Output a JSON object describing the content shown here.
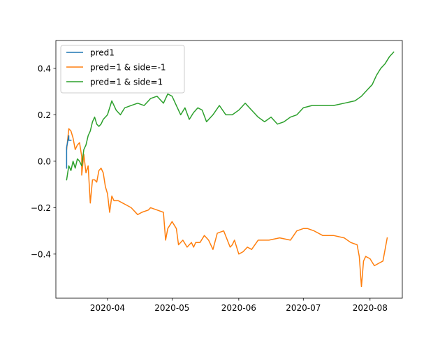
{
  "chart_data": {
    "type": "line",
    "title": "",
    "xlabel": "",
    "ylabel": "",
    "xlim": [
      "2020-03-08",
      "2020-08-16"
    ],
    "ylim": [
      -0.59,
      0.52
    ],
    "x_ticks": [
      "2020-04-01",
      "2020-05-01",
      "2020-06-01",
      "2020-07-01",
      "2020-08-01"
    ],
    "x_tick_labels": [
      "2020-04",
      "2020-05",
      "2020-06",
      "2020-07",
      "2020-08"
    ],
    "y_ticks": [
      -0.4,
      -0.2,
      0.0,
      0.2,
      0.4
    ],
    "y_tick_labels": [
      "−0.4",
      "−0.2",
      "0.0",
      "0.2",
      "0.4"
    ],
    "grid": false,
    "legend_position": "upper left",
    "series": [
      {
        "name": "pred1",
        "color": "#1f77b4",
        "x": [
          "2020-03-13",
          "2020-03-13",
          "2020-03-14",
          "2020-03-14",
          "2020-03-15"
        ],
        "y": [
          -0.03,
          0.06,
          0.11,
          0.09,
          0.09
        ]
      },
      {
        "name": "pred=1 & side=-1",
        "color": "#ff7f0e",
        "x": [
          "2020-03-13",
          "2020-03-14",
          "2020-03-15",
          "2020-03-16",
          "2020-03-17",
          "2020-03-18",
          "2020-03-19",
          "2020-03-20",
          "2020-03-20",
          "2020-03-21",
          "2020-03-22",
          "2020-03-23",
          "2020-03-24",
          "2020-03-25",
          "2020-03-26",
          "2020-03-27",
          "2020-03-28",
          "2020-03-29",
          "2020-03-30",
          "2020-03-31",
          "2020-04-01",
          "2020-04-02",
          "2020-04-03",
          "2020-04-04",
          "2020-04-06",
          "2020-04-08",
          "2020-04-10",
          "2020-04-12",
          "2020-04-15",
          "2020-04-17",
          "2020-04-20",
          "2020-04-21",
          "2020-04-24",
          "2020-04-27",
          "2020-04-28",
          "2020-04-29",
          "2020-05-01",
          "2020-05-03",
          "2020-05-04",
          "2020-05-06",
          "2020-05-08",
          "2020-05-10",
          "2020-05-11",
          "2020-05-12",
          "2020-05-14",
          "2020-05-16",
          "2020-05-18",
          "2020-05-20",
          "2020-05-22",
          "2020-05-25",
          "2020-05-28",
          "2020-05-29",
          "2020-05-30",
          "2020-06-01",
          "2020-06-03",
          "2020-06-05",
          "2020-06-07",
          "2020-06-10",
          "2020-06-15",
          "2020-06-20",
          "2020-06-25",
          "2020-06-28",
          "2020-07-01",
          "2020-07-03",
          "2020-07-06",
          "2020-07-10",
          "2020-07-15",
          "2020-07-20",
          "2020-07-23",
          "2020-07-26",
          "2020-07-27",
          "2020-07-28",
          "2020-07-29",
          "2020-07-30",
          "2020-08-01",
          "2020-08-03",
          "2020-08-05",
          "2020-08-07",
          "2020-08-09"
        ],
        "y": [
          0.05,
          0.14,
          0.13,
          0.1,
          0.05,
          0.07,
          0.08,
          0.02,
          -0.06,
          0.03,
          -0.05,
          -0.02,
          -0.18,
          -0.08,
          -0.08,
          -0.09,
          -0.04,
          -0.03,
          -0.05,
          -0.11,
          -0.14,
          -0.22,
          -0.15,
          -0.17,
          -0.17,
          -0.18,
          -0.19,
          -0.2,
          -0.23,
          -0.22,
          -0.21,
          -0.2,
          -0.21,
          -0.22,
          -0.34,
          -0.29,
          -0.26,
          -0.29,
          -0.36,
          -0.34,
          -0.37,
          -0.35,
          -0.37,
          -0.35,
          -0.35,
          -0.32,
          -0.34,
          -0.38,
          -0.31,
          -0.3,
          -0.37,
          -0.36,
          -0.34,
          -0.4,
          -0.39,
          -0.37,
          -0.38,
          -0.34,
          -0.34,
          -0.33,
          -0.34,
          -0.3,
          -0.29,
          -0.29,
          -0.3,
          -0.32,
          -0.32,
          -0.33,
          -0.35,
          -0.36,
          -0.41,
          -0.54,
          -0.43,
          -0.41,
          -0.42,
          -0.45,
          -0.44,
          -0.43,
          -0.33
        ]
      },
      {
        "name": "pred=1 & side=1",
        "color": "#2ca02c",
        "x": [
          "2020-03-13",
          "2020-03-14",
          "2020-03-15",
          "2020-03-16",
          "2020-03-17",
          "2020-03-18",
          "2020-03-19",
          "2020-03-20",
          "2020-03-21",
          "2020-03-22",
          "2020-03-23",
          "2020-03-24",
          "2020-03-25",
          "2020-03-26",
          "2020-03-27",
          "2020-03-28",
          "2020-03-29",
          "2020-03-30",
          "2020-04-01",
          "2020-04-03",
          "2020-04-05",
          "2020-04-07",
          "2020-04-09",
          "2020-04-12",
          "2020-04-15",
          "2020-04-18",
          "2020-04-21",
          "2020-04-24",
          "2020-04-27",
          "2020-04-29",
          "2020-05-01",
          "2020-05-03",
          "2020-05-05",
          "2020-05-07",
          "2020-05-09",
          "2020-05-11",
          "2020-05-13",
          "2020-05-15",
          "2020-05-17",
          "2020-05-20",
          "2020-05-23",
          "2020-05-26",
          "2020-05-29",
          "2020-06-01",
          "2020-06-04",
          "2020-06-07",
          "2020-06-10",
          "2020-06-13",
          "2020-06-16",
          "2020-06-19",
          "2020-06-22",
          "2020-06-25",
          "2020-06-28",
          "2020-07-01",
          "2020-07-05",
          "2020-07-10",
          "2020-07-15",
          "2020-07-20",
          "2020-07-25",
          "2020-07-28",
          "2020-07-31",
          "2020-08-02",
          "2020-08-04",
          "2020-08-06",
          "2020-08-08",
          "2020-08-10",
          "2020-08-12"
        ],
        "y": [
          -0.08,
          -0.02,
          -0.04,
          0.0,
          -0.03,
          0.01,
          0.0,
          -0.02,
          0.05,
          0.07,
          0.11,
          0.13,
          0.17,
          0.19,
          0.16,
          0.15,
          0.16,
          0.18,
          0.2,
          0.26,
          0.22,
          0.2,
          0.23,
          0.24,
          0.25,
          0.24,
          0.27,
          0.28,
          0.25,
          0.29,
          0.28,
          0.24,
          0.2,
          0.23,
          0.18,
          0.21,
          0.23,
          0.22,
          0.17,
          0.2,
          0.24,
          0.2,
          0.2,
          0.22,
          0.25,
          0.22,
          0.19,
          0.17,
          0.19,
          0.16,
          0.17,
          0.19,
          0.2,
          0.23,
          0.24,
          0.24,
          0.24,
          0.25,
          0.26,
          0.28,
          0.31,
          0.33,
          0.37,
          0.4,
          0.42,
          0.45,
          0.47
        ]
      }
    ]
  }
}
